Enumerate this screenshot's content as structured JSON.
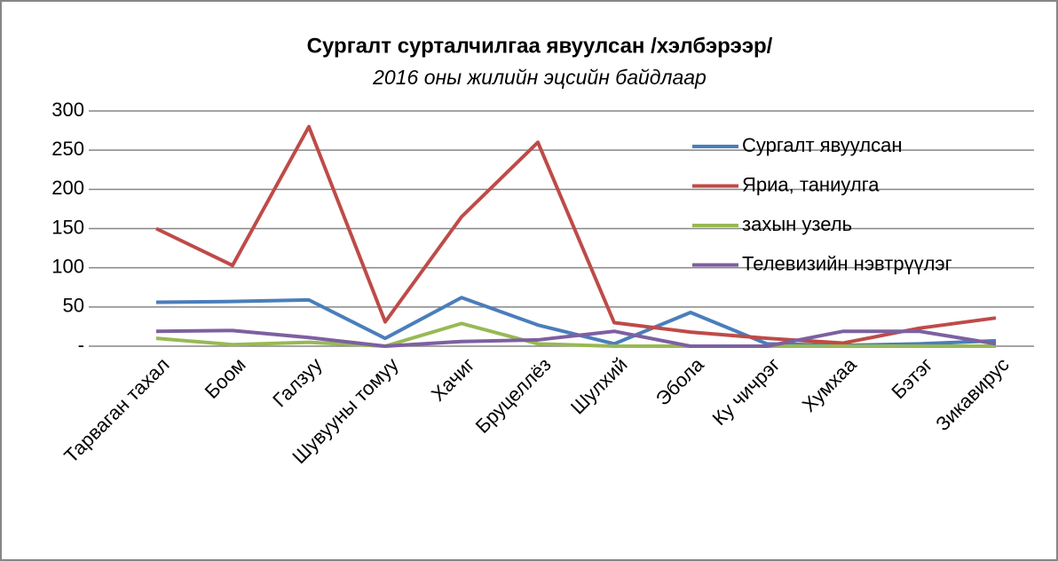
{
  "chart_data": {
    "type": "line",
    "title": "Сургалт сурталчилгаа явуулсан /хэлбэрээр/",
    "subtitle": "2016 оны жилийн эцсийн байдлаар",
    "categories": [
      "Тарваган тахал",
      "Боом",
      "Галзуу",
      "Шувууны томуу",
      "Хачиг",
      "Бруцеллёз",
      "Шулхий",
      "Эбола",
      "Ку чичрэг",
      "Хумхаа",
      "Бэтэг",
      "Зикавирус"
    ],
    "series": [
      {
        "name": "Сургалт явуулсан",
        "color": "#4a7ebb",
        "values": [
          56,
          57,
          59,
          10,
          62,
          27,
          3,
          43,
          3,
          1,
          3,
          7
        ]
      },
      {
        "name": "Яриа, таниулга",
        "color": "#be4b48",
        "values": [
          150,
          103,
          280,
          31,
          165,
          260,
          30,
          18,
          10,
          4,
          23,
          36
        ]
      },
      {
        "name": "захын узель",
        "color": "#98b954",
        "values": [
          10,
          2,
          5,
          0,
          29,
          3,
          0,
          0,
          0,
          0,
          0,
          0
        ]
      },
      {
        "name": "Телевизийн нэвтрүүлэг",
        "color": "#7d60a0",
        "values": [
          19,
          20,
          11,
          0,
          6,
          8,
          19,
          0,
          0,
          19,
          19,
          3
        ]
      }
    ],
    "ylim": [
      0,
      300
    ],
    "yticks": [
      {
        "value": 0,
        "label": "-"
      },
      50,
      100,
      150,
      200,
      250,
      300
    ],
    "grid": true,
    "legend": "upper right"
  }
}
